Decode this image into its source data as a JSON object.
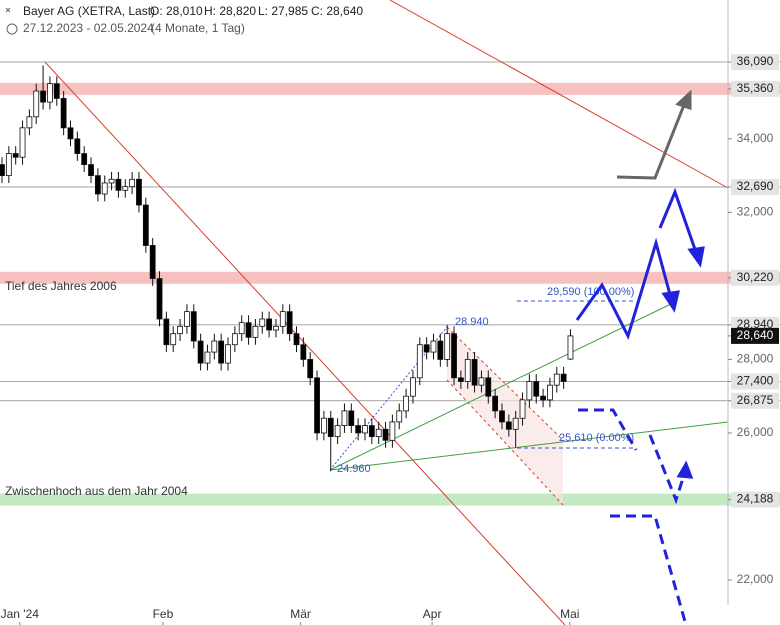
{
  "header": {
    "title": "Bayer AG (XETRA, Last)",
    "ohlc_labels": [
      "O: 28,010",
      "H: 28,820",
      "L: 27,985",
      "C: 28,640"
    ],
    "range": "27.12.2023 - 02.05.2024",
    "period": "(4 Monate, 1 Tag)"
  },
  "annotations": {
    "low_2006": "Tief des Jahres 2006",
    "high_2004": "Zwischenhoch aus dem Jahr 2004",
    "high_label": "28.940",
    "low_label": "24.960",
    "fib_top": "29,590 (100.00%)",
    "fib_bottom": "25,610 (0.00%)"
  },
  "chart_data": {
    "type": "candlestick",
    "up_color": "#ffffff",
    "down_color": "#000000",
    "open": [
      33.3,
      33.0,
      33.6,
      33.5,
      34.3,
      34.6,
      35.3,
      35.0,
      35.5,
      35.1,
      34.3,
      34.0,
      33.6,
      33.3,
      33.0,
      32.5,
      32.8,
      32.9,
      32.6,
      32.7,
      32.9,
      32.2,
      31.1,
      30.2,
      29.1,
      28.4,
      28.7,
      28.9,
      29.3,
      28.5,
      27.9,
      28.2,
      28.5,
      27.9,
      28.4,
      28.7,
      29.0,
      28.6,
      28.9,
      29.1,
      28.8,
      28.9,
      29.3,
      28.7,
      28.4,
      28.0,
      27.5,
      26.0,
      26.4,
      25.9,
      26.2,
      26.6,
      26.2,
      26.0,
      26.2,
      25.9,
      26.1,
      25.8,
      26.3,
      26.6,
      27.0,
      27.5,
      28.4,
      28.2,
      28.5,
      28.0,
      28.7,
      27.5,
      27.4,
      28.0,
      27.3,
      27.5,
      27.0,
      26.6,
      26.3,
      26.1,
      26.4,
      26.9,
      27.4,
      27.0,
      26.9,
      27.3,
      27.6,
      28.01
    ],
    "high": [
      33.5,
      33.8,
      33.8,
      34.5,
      34.8,
      35.5,
      36.0,
      35.7,
      35.7,
      35.3,
      34.5,
      34.2,
      33.8,
      33.5,
      33.2,
      33.0,
      33.1,
      33.1,
      32.9,
      33.1,
      33.1,
      32.4,
      31.3,
      30.4,
      29.3,
      28.9,
      29.1,
      29.5,
      29.5,
      28.7,
      28.4,
      28.7,
      28.7,
      28.6,
      28.9,
      29.2,
      29.2,
      29.1,
      29.3,
      29.3,
      29.1,
      29.5,
      29.5,
      28.9,
      28.6,
      28.2,
      27.7,
      26.6,
      26.6,
      26.4,
      26.8,
      26.8,
      26.4,
      26.4,
      26.4,
      26.3,
      26.3,
      26.5,
      26.8,
      27.2,
      27.7,
      28.6,
      28.6,
      28.7,
      28.7,
      28.94,
      28.9,
      27.7,
      28.2,
      28.2,
      27.7,
      27.7,
      27.2,
      26.8,
      26.5,
      26.6,
      27.1,
      27.6,
      27.6,
      27.2,
      27.5,
      27.8,
      27.8,
      28.82
    ],
    "low": [
      32.8,
      32.8,
      33.3,
      33.3,
      34.1,
      34.4,
      34.8,
      34.8,
      34.9,
      34.1,
      33.8,
      33.4,
      33.1,
      32.8,
      32.3,
      32.3,
      32.6,
      32.4,
      32.4,
      32.5,
      32.0,
      30.9,
      30.0,
      28.9,
      28.2,
      28.2,
      28.5,
      28.7,
      28.3,
      27.7,
      27.7,
      28.0,
      27.7,
      27.7,
      28.2,
      28.5,
      28.4,
      28.4,
      28.7,
      28.6,
      28.6,
      28.7,
      28.5,
      28.2,
      27.8,
      27.3,
      25.8,
      25.8,
      24.96,
      25.7,
      26.0,
      26.0,
      25.8,
      25.8,
      25.7,
      25.7,
      25.6,
      25.6,
      26.1,
      26.4,
      26.8,
      27.3,
      28.0,
      28.0,
      27.8,
      27.8,
      27.3,
      27.2,
      27.2,
      27.1,
      27.1,
      26.8,
      26.4,
      26.1,
      25.9,
      25.61,
      26.2,
      26.7,
      26.8,
      26.7,
      26.7,
      27.1,
      27.2,
      27.985
    ],
    "close": [
      33.0,
      33.6,
      33.5,
      34.3,
      34.6,
      35.3,
      35.0,
      35.5,
      35.1,
      34.3,
      34.0,
      33.6,
      33.3,
      33.0,
      32.5,
      32.8,
      32.9,
      32.6,
      32.7,
      32.9,
      32.2,
      31.1,
      30.2,
      29.1,
      28.4,
      28.7,
      28.9,
      29.3,
      28.5,
      27.9,
      28.2,
      28.5,
      27.9,
      28.4,
      28.7,
      29.0,
      28.6,
      28.9,
      29.1,
      28.8,
      28.9,
      29.3,
      28.7,
      28.4,
      28.0,
      27.5,
      26.0,
      26.4,
      25.9,
      26.2,
      26.6,
      26.2,
      26.0,
      26.2,
      25.9,
      26.1,
      25.8,
      26.3,
      26.6,
      27.0,
      27.5,
      28.4,
      28.2,
      28.5,
      28.0,
      28.7,
      27.5,
      27.4,
      28.0,
      27.3,
      27.5,
      27.0,
      26.6,
      26.3,
      26.1,
      26.4,
      26.9,
      27.4,
      27.0,
      26.9,
      27.3,
      27.6,
      27.4,
      28.64
    ],
    "xlim": [
      -0.29,
      106
    ],
    "xticks": [
      {
        "value": 2.6,
        "label": "Jan '24"
      },
      {
        "value": 23.5,
        "label": "Feb"
      },
      {
        "value": 43.6,
        "label": "Mär"
      },
      {
        "value": 62.8,
        "label": "Apr"
      },
      {
        "value": 82.9,
        "label": "Mai"
      }
    ],
    "ylim": [
      21.32,
      37.777
    ],
    "yticks": [
      {
        "value": 36.09,
        "label": "36,090"
      },
      {
        "value": 35.36,
        "label": "35,360"
      },
      {
        "value": 34,
        "label": "34,000"
      },
      {
        "value": 32.69,
        "label": "32,690"
      },
      {
        "value": 32,
        "label": "32,000"
      },
      {
        "value": 30.22,
        "label": "30,220"
      },
      {
        "value": 28.94,
        "label": "28,940"
      },
      {
        "value": 28.64,
        "label": "28,640"
      },
      {
        "value": 28,
        "label": "28,000"
      },
      {
        "value": 27.4,
        "label": "27,400"
      },
      {
        "value": 26.875,
        "label": "26,875"
      },
      {
        "value": 26,
        "label": "26,000"
      },
      {
        "value": 24.188,
        "label": "24,188"
      },
      {
        "value": 22,
        "label": "22,000"
      }
    ],
    "levels": [
      36.09,
      32.69,
      28.94,
      27.4,
      26.875
    ],
    "bands": [
      {
        "value": 35.36,
        "color": "#f4b6b4"
      },
      {
        "value": 30.22,
        "color": "#f4b6b4"
      },
      {
        "value": 24.188,
        "color": "#b8e6b8"
      }
    ]
  }
}
